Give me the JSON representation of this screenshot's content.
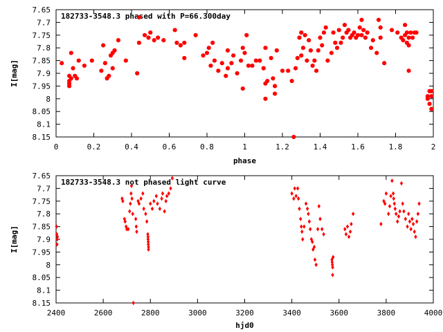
{
  "chart_data": [
    {
      "type": "scatter",
      "title": "182733-3548.3 phased with P=66.300day",
      "xlabel": "phase",
      "ylabel": "I[mag]",
      "xlim": [
        0,
        2
      ],
      "ylim": [
        8.15,
        7.65
      ],
      "y_inverted": true,
      "grid": false,
      "marker_color": "#ff0000",
      "marker": "filled-circle",
      "xticks": [
        "0",
        "0.2",
        "0.4",
        "0.6",
        "0.8",
        "1",
        "1.2",
        "1.4",
        "1.6",
        "1.8",
        "2"
      ],
      "yticks": [
        "7.65",
        "7.7",
        "7.75",
        "7.8",
        "7.85",
        "7.9",
        "7.95",
        "8",
        "8.05",
        "8.1",
        "8.15"
      ],
      "series": [
        {
          "points": [
            [
              0.03,
              7.86
            ],
            [
              0.07,
              7.91
            ],
            [
              0.07,
              7.93
            ],
            [
              0.07,
              7.94
            ],
            [
              0.07,
              7.95
            ],
            [
              0.08,
              7.92
            ],
            [
              0.08,
              7.82
            ],
            [
              0.09,
              7.88
            ],
            [
              0.1,
              7.91
            ],
            [
              0.11,
              7.92
            ],
            [
              0.12,
              7.85
            ],
            [
              0.15,
              7.87
            ],
            [
              0.19,
              7.85
            ],
            [
              0.24,
              7.89
            ],
            [
              0.25,
              7.79
            ],
            [
              0.26,
              7.86
            ],
            [
              0.27,
              7.92
            ],
            [
              0.28,
              7.91
            ],
            [
              0.29,
              7.83
            ],
            [
              0.3,
              7.88
            ],
            [
              0.3,
              7.82
            ],
            [
              0.31,
              7.81
            ],
            [
              0.33,
              7.77
            ],
            [
              0.37,
              7.85
            ],
            [
              0.43,
              7.9
            ],
            [
              0.44,
              7.78
            ],
            [
              0.44,
              7.68
            ],
            [
              0.47,
              7.75
            ],
            [
              0.49,
              7.76
            ],
            [
              0.5,
              7.74
            ],
            [
              0.52,
              7.77
            ],
            [
              0.54,
              7.76
            ],
            [
              0.57,
              7.77
            ],
            [
              0.63,
              7.73
            ],
            [
              0.64,
              7.78
            ],
            [
              0.66,
              7.79
            ],
            [
              0.68,
              7.78
            ],
            [
              0.68,
              7.84
            ],
            [
              0.74,
              7.75
            ],
            [
              0.78,
              7.83
            ],
            [
              0.8,
              7.82
            ],
            [
              0.81,
              7.8
            ],
            [
              0.82,
              7.87
            ],
            [
              0.83,
              7.78
            ],
            [
              0.84,
              7.85
            ],
            [
              0.86,
              7.89
            ],
            [
              0.88,
              7.86
            ],
            [
              0.9,
              7.91
            ],
            [
              0.91,
              7.81
            ],
            [
              0.91,
              7.88
            ],
            [
              0.93,
              7.86
            ],
            [
              0.94,
              7.83
            ],
            [
              0.96,
              7.9
            ],
            [
              0.98,
              7.85
            ],
            [
              0.99,
              7.8
            ],
            [
              0.99,
              7.96
            ],
            [
              1.0,
              7.82
            ],
            [
              1.01,
              7.75
            ],
            [
              1.02,
              7.87
            ],
            [
              1.04,
              7.87
            ],
            [
              1.06,
              7.85
            ],
            [
              1.08,
              7.85
            ],
            [
              1.1,
              7.88
            ],
            [
              1.11,
              7.94
            ],
            [
              1.11,
              8.0
            ],
            [
              1.11,
              7.8
            ],
            [
              1.12,
              7.93
            ],
            [
              1.14,
              7.84
            ],
            [
              1.15,
              7.92
            ],
            [
              1.16,
              7.95
            ],
            [
              1.16,
              7.98
            ],
            [
              1.17,
              7.81
            ],
            [
              1.2,
              7.89
            ],
            [
              1.23,
              7.89
            ],
            [
              1.25,
              7.93
            ],
            [
              1.26,
              8.15
            ],
            [
              1.27,
              7.88
            ],
            [
              1.28,
              7.84
            ],
            [
              1.29,
              7.76
            ],
            [
              1.3,
              7.74
            ],
            [
              1.3,
              7.83
            ],
            [
              1.31,
              7.8
            ],
            [
              1.32,
              7.75
            ],
            [
              1.33,
              7.85
            ],
            [
              1.34,
              7.77
            ],
            [
              1.35,
              7.81
            ],
            [
              1.36,
              7.87
            ],
            [
              1.37,
              7.85
            ],
            [
              1.38,
              7.89
            ],
            [
              1.39,
              7.81
            ],
            [
              1.4,
              7.76
            ],
            [
              1.41,
              7.79
            ],
            [
              1.42,
              7.74
            ],
            [
              1.43,
              7.72
            ],
            [
              1.44,
              7.85
            ],
            [
              1.46,
              7.82
            ],
            [
              1.47,
              7.74
            ],
            [
              1.48,
              7.78
            ],
            [
              1.49,
              7.8
            ],
            [
              1.5,
              7.73
            ],
            [
              1.51,
              7.78
            ],
            [
              1.52,
              7.76
            ],
            [
              1.53,
              7.71
            ],
            [
              1.54,
              7.74
            ],
            [
              1.55,
              7.73
            ],
            [
              1.56,
              7.76
            ],
            [
              1.57,
              7.75
            ],
            [
              1.58,
              7.74
            ],
            [
              1.59,
              7.76
            ],
            [
              1.6,
              7.75
            ],
            [
              1.61,
              7.72
            ],
            [
              1.62,
              7.69
            ],
            [
              1.62,
              7.75
            ],
            [
              1.63,
              7.73
            ],
            [
              1.64,
              7.76
            ],
            [
              1.65,
              7.74
            ],
            [
              1.67,
              7.8
            ],
            [
              1.68,
              7.77
            ],
            [
              1.7,
              7.82
            ],
            [
              1.71,
              7.69
            ],
            [
              1.72,
              7.72
            ],
            [
              1.72,
              7.76
            ],
            [
              1.74,
              7.86
            ],
            [
              1.78,
              7.73
            ],
            [
              1.81,
              7.74
            ],
            [
              1.83,
              7.76
            ],
            [
              1.84,
              7.77
            ],
            [
              1.85,
              7.71
            ],
            [
              1.85,
              7.75
            ],
            [
              1.86,
              7.78
            ],
            [
              1.86,
              7.74
            ],
            [
              1.87,
              7.76
            ],
            [
              1.87,
              7.79
            ],
            [
              1.87,
              7.89
            ],
            [
              1.88,
              7.74
            ],
            [
              1.89,
              7.76
            ],
            [
              1.9,
              7.74
            ],
            [
              1.91,
              7.74
            ],
            [
              1.97,
              7.99
            ],
            [
              1.97,
              8.0
            ],
            [
              1.98,
              7.97
            ],
            [
              1.98,
              8.02
            ],
            [
              1.99,
              7.97
            ],
            [
              1.99,
              8.04
            ],
            [
              1.99,
              7.99
            ]
          ]
        }
      ]
    },
    {
      "type": "scatter",
      "title": "182733-3548.3 not phased light curve",
      "xlabel": "hjd0",
      "ylabel": "I[mag]",
      "xlim": [
        2400,
        4000
      ],
      "ylim": [
        8.15,
        7.65
      ],
      "y_inverted": true,
      "grid": false,
      "marker_color": "#ff0000",
      "marker": "filled-diamond",
      "xticks": [
        "2400",
        "2600",
        "2800",
        "3000",
        "3200",
        "3400",
        "3600",
        "3800",
        "4000"
      ],
      "yticks": [
        "7.65",
        "7.7",
        "7.75",
        "7.8",
        "7.85",
        "7.9",
        "7.95",
        "8",
        "8.05",
        "8.1",
        "8.15"
      ],
      "series": [
        {
          "points": [
            [
              2402,
              7.85
            ],
            [
              2403,
              7.88
            ],
            [
              2404,
              7.92
            ],
            [
              2405,
              7.9
            ],
            [
              2406,
              7.89
            ],
            [
              2680,
              7.74
            ],
            [
              2683,
              7.75
            ],
            [
              2690,
              7.82
            ],
            [
              2693,
              7.83
            ],
            [
              2697,
              7.85
            ],
            [
              2700,
              7.86
            ],
            [
              2706,
              7.86
            ],
            [
              2712,
              7.79
            ],
            [
              2715,
              7.76
            ],
            [
              2718,
              7.72
            ],
            [
              2720,
              7.69
            ],
            [
              2722,
              7.74
            ],
            [
              2725,
              7.8
            ],
            [
              2728,
              8.15
            ],
            [
              2738,
              7.82
            ],
            [
              2740,
              7.85
            ],
            [
              2742,
              7.87
            ],
            [
              2748,
              7.75
            ],
            [
              2752,
              7.76
            ],
            [
              2760,
              7.74
            ],
            [
              2768,
              7.72
            ],
            [
              2772,
              7.78
            ],
            [
              2780,
              7.8
            ],
            [
              2785,
              7.83
            ],
            [
              2789,
              7.88
            ],
            [
              2790,
              7.89
            ],
            [
              2790,
              7.9
            ],
            [
              2791,
              7.91
            ],
            [
              2791,
              7.92
            ],
            [
              2792,
              7.93
            ],
            [
              2792,
              7.94
            ],
            [
              2800,
              7.76
            ],
            [
              2808,
              7.78
            ],
            [
              2815,
              7.75
            ],
            [
              2825,
              7.73
            ],
            [
              2830,
              7.76
            ],
            [
              2840,
              7.78
            ],
            [
              2848,
              7.74
            ],
            [
              2852,
              7.72
            ],
            [
              2860,
              7.79
            ],
            [
              2866,
              7.75
            ],
            [
              2870,
              7.73
            ],
            [
              2878,
              7.72
            ],
            [
              2886,
              7.7
            ],
            [
              2893,
              7.66
            ],
            [
              3400,
              7.72
            ],
            [
              3408,
              7.74
            ],
            [
              3412,
              7.7
            ],
            [
              3418,
              7.73
            ],
            [
              3425,
              7.7
            ],
            [
              3428,
              7.74
            ],
            [
              3432,
              7.78
            ],
            [
              3437,
              7.82
            ],
            [
              3440,
              7.85
            ],
            [
              3443,
              7.87
            ],
            [
              3446,
              7.9
            ],
            [
              3452,
              7.85
            ],
            [
              3460,
              7.76
            ],
            [
              3466,
              7.78
            ],
            [
              3470,
              7.8
            ],
            [
              3474,
              7.83
            ],
            [
              3478,
              7.86
            ],
            [
              3483,
              7.9
            ],
            [
              3487,
              7.91
            ],
            [
              3490,
              7.94
            ],
            [
              3495,
              7.93
            ],
            [
              3498,
              7.98
            ],
            [
              3503,
              8.0
            ],
            [
              3510,
              7.86
            ],
            [
              3515,
              7.77
            ],
            [
              3520,
              7.82
            ],
            [
              3528,
              7.86
            ],
            [
              3535,
              7.88
            ],
            [
              3570,
              7.98
            ],
            [
              3571,
              7.99
            ],
            [
              3572,
              8.0
            ],
            [
              3573,
              8.01
            ],
            [
              3573,
              8.04
            ],
            [
              3575,
              7.97
            ],
            [
              3625,
              7.86
            ],
            [
              3630,
              7.88
            ],
            [
              3636,
              7.85
            ],
            [
              3642,
              7.89
            ],
            [
              3648,
              7.87
            ],
            [
              3652,
              7.84
            ],
            [
              3660,
              7.8
            ],
            [
              3778,
              7.84
            ],
            [
              3790,
              7.75
            ],
            [
              3795,
              7.76
            ],
            [
              3800,
              7.72
            ],
            [
              3810,
              7.8
            ],
            [
              3815,
              7.77
            ],
            [
              3820,
              7.73
            ],
            [
              3825,
              7.67
            ],
            [
              3830,
              7.72
            ],
            [
              3832,
              7.74
            ],
            [
              3835,
              7.76
            ],
            [
              3838,
              7.78
            ],
            [
              3842,
              7.8
            ],
            [
              3848,
              7.83
            ],
            [
              3853,
              7.81
            ],
            [
              3858,
              7.79
            ],
            [
              3865,
              7.68
            ],
            [
              3870,
              7.76
            ],
            [
              3875,
              7.79
            ],
            [
              3882,
              7.82
            ],
            [
              3890,
              7.85
            ],
            [
              3895,
              7.8
            ],
            [
              3900,
              7.83
            ],
            [
              3905,
              7.86
            ],
            [
              3910,
              7.82
            ],
            [
              3915,
              7.84
            ],
            [
              3920,
              7.87
            ],
            [
              3925,
              7.89
            ],
            [
              3930,
              7.83
            ],
            [
              3935,
              7.8
            ],
            [
              3940,
              7.76
            ]
          ]
        }
      ]
    }
  ]
}
